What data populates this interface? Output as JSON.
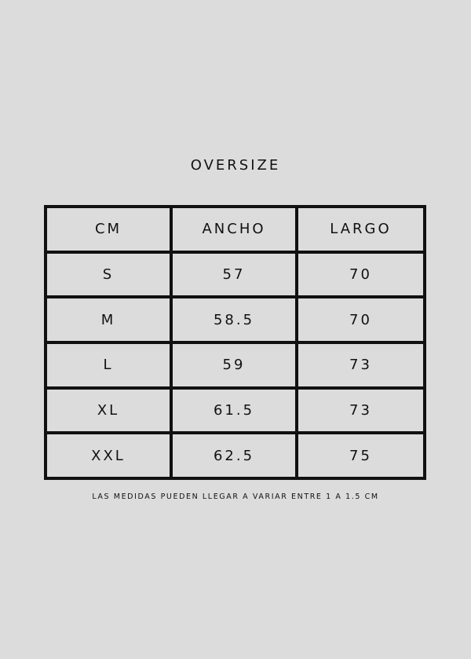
{
  "title": "OVERSIZE",
  "table": {
    "headers": [
      "CM",
      "ANCHO",
      "LARGO"
    ],
    "rows": [
      [
        "S",
        "57",
        "70"
      ],
      [
        "M",
        "58.5",
        "70"
      ],
      [
        "L",
        "59",
        "73"
      ],
      [
        "XL",
        "61.5",
        "73"
      ],
      [
        "XXL",
        "62.5",
        "75"
      ]
    ]
  },
  "note": "LAS MEDIDAS PUEDEN LLEGAR A VARIAR ENTRE 1 A 1.5 CM",
  "colors": {
    "background": "#dcdcdc",
    "text": "#111111",
    "border": "#111111"
  }
}
